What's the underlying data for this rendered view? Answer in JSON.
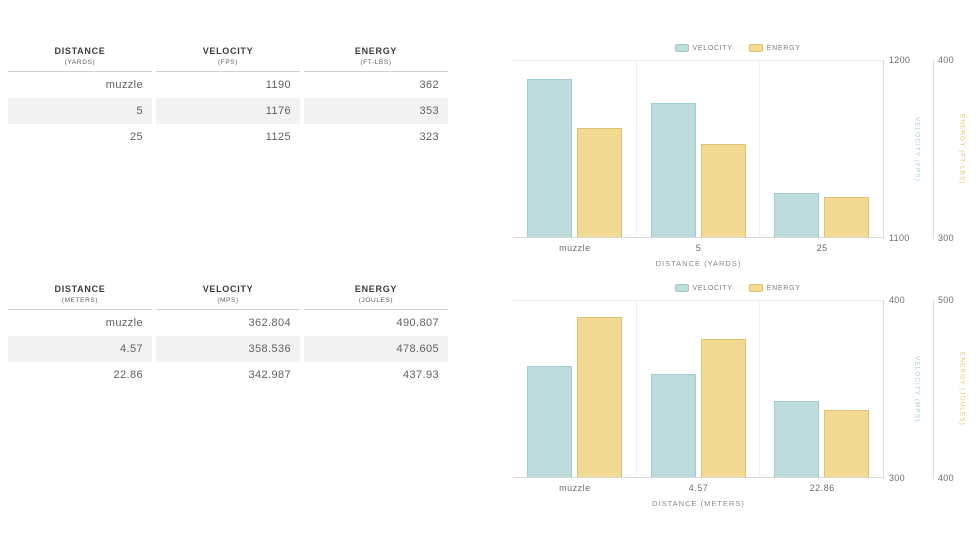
{
  "colors": {
    "velocity_fill": "#bcdbdd",
    "velocity_border": "#a3ccd1",
    "energy_fill": "#f2d994",
    "energy_border": "#e0c172",
    "velocity_axis_text": "#a6d0d6",
    "energy_axis_text": "#e8c66d",
    "muted_text": "#6e6e6e",
    "header_text": "#3d3d3d",
    "stripe": "#f2f2f2",
    "axis_line": "#dcdcdc"
  },
  "tables": [
    {
      "name": "imperial-ballistics",
      "columns": [
        {
          "label": "DISTANCE",
          "sublabel": "(YARDS)"
        },
        {
          "label": "VELOCITY",
          "sublabel": "(FPS)"
        },
        {
          "label": "ENERGY",
          "sublabel": "(FT-LBS)"
        }
      ],
      "rows": [
        [
          "muzzle",
          "1190",
          "362"
        ],
        [
          "5",
          "1176",
          "353"
        ],
        [
          "25",
          "1125",
          "323"
        ]
      ]
    },
    {
      "name": "metric-ballistics",
      "columns": [
        {
          "label": "DISTANCE",
          "sublabel": "(METERS)"
        },
        {
          "label": "VELOCITY",
          "sublabel": "(MPS)"
        },
        {
          "label": "ENERGY",
          "sublabel": "(JOULES)"
        }
      ],
      "rows": [
        [
          "muzzle",
          "362.804",
          "490.807"
        ],
        [
          "4.57",
          "358.536",
          "478.605"
        ],
        [
          "22.86",
          "342.987",
          "437.93"
        ]
      ]
    }
  ],
  "chart_data": [
    {
      "type": "bar",
      "title": "",
      "categories": [
        "muzzle",
        "5",
        "25"
      ],
      "series": [
        {
          "name": "VELOCITY",
          "key": "velocity",
          "axis": "y1",
          "values": [
            1190,
            1176,
            1125
          ]
        },
        {
          "name": "ENERGY",
          "key": "energy",
          "axis": "y2",
          "values": [
            362,
            353,
            323
          ]
        }
      ],
      "xlabel": "DISTANCE (YARDS)",
      "y1": {
        "label": "VELOCITY (FPS)",
        "min": 1100,
        "max": 1200,
        "ticks": [
          "1200",
          "1100"
        ]
      },
      "y2": {
        "label": "ENERGY (FT-LBS)",
        "min": 300,
        "max": 400,
        "ticks": [
          "400",
          "300"
        ]
      },
      "legend_position": "top",
      "grid": "vertical-category-dividers"
    },
    {
      "type": "bar",
      "title": "",
      "categories": [
        "muzzle",
        "4.57",
        "22.86"
      ],
      "series": [
        {
          "name": "VELOCITY",
          "key": "velocity",
          "axis": "y1",
          "values": [
            362.804,
            358.536,
            342.987
          ]
        },
        {
          "name": "ENERGY",
          "key": "energy",
          "axis": "y2",
          "values": [
            490.807,
            478.605,
            437.93
          ]
        }
      ],
      "xlabel": "DISTANCE (METERS)",
      "y1": {
        "label": "VELOCITY (MPS)",
        "min": 300,
        "max": 400,
        "ticks": [
          "400",
          "300"
        ]
      },
      "y2": {
        "label": "ENERGY (JOULES)",
        "min": 400,
        "max": 500,
        "ticks": [
          "500",
          "400"
        ]
      },
      "legend_position": "top",
      "grid": "vertical-category-dividers"
    }
  ]
}
